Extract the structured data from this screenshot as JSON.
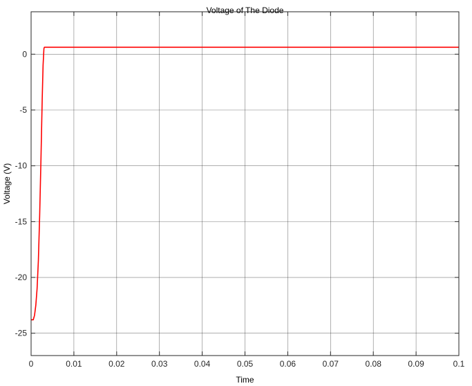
{
  "chart_data": {
    "type": "line",
    "title": "Voltage of The Diode",
    "xlabel": "Time",
    "ylabel": "Voltage (V)",
    "xlim": [
      0,
      0.1
    ],
    "ylim": [
      -27,
      3.8
    ],
    "xticks": [
      0,
      0.01,
      0.02,
      0.03,
      0.04,
      0.05,
      0.06,
      0.07,
      0.08,
      0.09,
      0.1
    ],
    "xtick_labels": [
      "0",
      "0.01",
      "0.02",
      "0.03",
      "0.04",
      "0.05",
      "0.06",
      "0.07",
      "0.08",
      "0.09",
      "0.1"
    ],
    "yticks": [
      0,
      -5,
      -10,
      -15,
      -20,
      -25
    ],
    "ytick_labels": [
      "0",
      "-5",
      "-10",
      "-15",
      "-20",
      "-25"
    ],
    "grid": true,
    "series": [
      {
        "color": "#ff0000",
        "x": [
          0,
          0.0005,
          0.0008,
          0.0011,
          0.0014,
          0.0017,
          0.002,
          0.0023,
          0.0026,
          0.0028,
          0.003,
          0.0031,
          0.1
        ],
        "y": [
          -23.8,
          -23.8,
          -23.4,
          -22.5,
          -21.0,
          -18.5,
          -14.5,
          -9.5,
          -4.0,
          -1.0,
          0.5,
          0.62,
          0.62
        ]
      }
    ]
  }
}
